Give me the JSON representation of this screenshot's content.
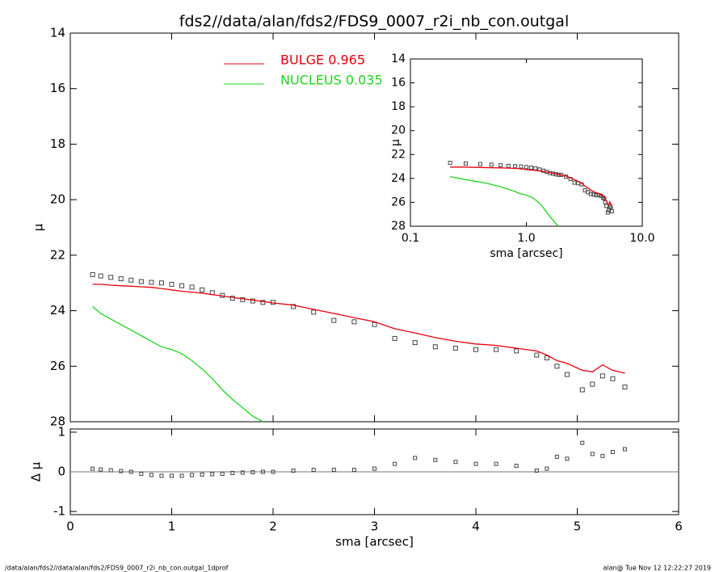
{
  "title": "fds2//data/alan/fds2/FDS9_0007_r2i_nb_con.outgal",
  "footer_left": "/data/alan/fds2//data/alan/fds2/FDS9_0007_r2i_nb_con.outgal_1dprof",
  "footer_right": "alan@  Tue Nov 12 12:22:27 2019",
  "chart_data": [
    {
      "type": "profile",
      "ylabel": "μ",
      "xlim": [
        0,
        6
      ],
      "ylim": [
        28,
        14
      ],
      "yticks": [
        14,
        16,
        18,
        20,
        22,
        24,
        26,
        28
      ],
      "x": [
        0.22,
        0.3,
        0.4,
        0.5,
        0.6,
        0.7,
        0.8,
        0.9,
        1.0,
        1.1,
        1.2,
        1.3,
        1.4,
        1.5,
        1.6,
        1.7,
        1.8,
        1.9,
        2.0,
        2.2,
        2.4,
        2.6,
        2.8,
        3.0,
        3.2,
        3.4,
        3.6,
        3.8,
        4.0,
        4.2,
        4.4,
        4.6,
        4.7,
        4.8,
        4.9,
        5.05,
        5.15,
        5.25,
        5.35,
        5.47
      ],
      "points": {
        "color": "#444444",
        "values": [
          22.7,
          22.75,
          22.8,
          22.85,
          22.9,
          22.95,
          22.98,
          23.0,
          23.05,
          23.1,
          23.15,
          23.25,
          23.35,
          23.45,
          23.55,
          23.6,
          23.65,
          23.7,
          23.7,
          23.85,
          24.05,
          24.35,
          24.4,
          24.5,
          25.0,
          25.15,
          25.3,
          25.35,
          25.4,
          25.4,
          25.45,
          25.6,
          25.7,
          26.0,
          26.3,
          26.85,
          26.65,
          26.35,
          26.45,
          26.75
        ]
      },
      "series": [
        {
          "name": "BULGE  0.965",
          "color": "#e8000b",
          "values": [
            23.05,
            23.05,
            23.08,
            23.1,
            23.12,
            23.14,
            23.16,
            23.2,
            23.25,
            23.3,
            23.33,
            23.37,
            23.42,
            23.47,
            23.52,
            23.57,
            23.62,
            23.67,
            23.72,
            23.8,
            23.95,
            24.1,
            24.25,
            24.4,
            24.65,
            24.8,
            24.97,
            25.1,
            25.2,
            25.25,
            25.35,
            25.45,
            25.6,
            25.8,
            25.9,
            26.15,
            26.2,
            25.95,
            26.15,
            26.25
          ]
        },
        {
          "name": "NUCLEUS  0.035",
          "color": "#1ed41e",
          "values": [
            23.85,
            24.1,
            24.3,
            24.5,
            24.7,
            24.9,
            25.1,
            25.3,
            25.4,
            25.55,
            25.8,
            26.1,
            26.45,
            26.85,
            27.2,
            27.5,
            27.8,
            28.0,
            null,
            null,
            null,
            null,
            null,
            null,
            null,
            null,
            null,
            null,
            null,
            null,
            null,
            null,
            null,
            null,
            null,
            null,
            null,
            null,
            null,
            null
          ]
        }
      ]
    },
    {
      "type": "residual",
      "ylabel": "Δ μ",
      "xlabel": "sma [arcsec]",
      "xlim": [
        0,
        6
      ],
      "ylim": [
        -1.08,
        1.08
      ],
      "xticks": [
        0,
        1,
        2,
        3,
        4,
        5,
        6
      ],
      "yticks": [
        -1,
        0,
        1
      ],
      "color": "#444444",
      "values": [
        0.08,
        0.06,
        0.04,
        0.02,
        0.0,
        -0.05,
        -0.08,
        -0.1,
        -0.1,
        -0.1,
        -0.08,
        -0.07,
        -0.06,
        -0.05,
        -0.03,
        -0.02,
        -0.01,
        0.0,
        0.0,
        0.03,
        0.05,
        0.05,
        0.05,
        0.08,
        0.2,
        0.35,
        0.3,
        0.25,
        0.2,
        0.2,
        0.15,
        0.03,
        0.08,
        0.38,
        0.33,
        0.73,
        0.45,
        0.4,
        0.5,
        0.57
      ]
    },
    {
      "type": "inset",
      "ylabel": "μ",
      "xlabel": "sma [arcsec]",
      "log_x": true,
      "xlim": [
        0.1,
        10
      ],
      "ylim": [
        28,
        14
      ],
      "xticks": [
        0.1,
        {
          "value": 1,
          "label": "1.0"
        },
        {
          "value": 10,
          "label": "10.0"
        }
      ],
      "yticks": [
        14,
        16,
        18,
        20,
        22,
        24,
        26,
        28
      ]
    }
  ]
}
